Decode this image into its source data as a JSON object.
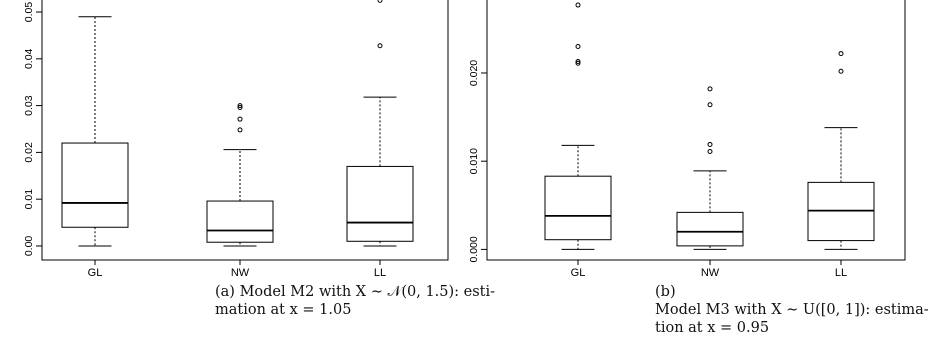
{
  "chart_data": [
    {
      "type": "box",
      "categories": [
        "GL",
        "NW",
        "LL"
      ],
      "ylim": [
        -0.003,
        0.053
      ],
      "yticks": [
        0.0,
        0.01,
        0.02,
        0.03,
        0.04,
        0.05
      ],
      "ytick_labels": [
        "0.00",
        "0.01",
        "0.02",
        "0.03",
        "0.04",
        "0.05"
      ],
      "boxes": [
        {
          "category": "GL",
          "whisker_low": 0.0,
          "q1": 0.004,
          "median": 0.0092,
          "q3": 0.022,
          "whisker_high": 0.049,
          "outliers": []
        },
        {
          "category": "NW",
          "whisker_low": 0.0,
          "q1": 0.0008,
          "median": 0.0033,
          "q3": 0.0096,
          "whisker_high": 0.0206,
          "outliers": [
            0.0248,
            0.0271,
            0.0296,
            0.03
          ]
        },
        {
          "category": "LL",
          "whisker_low": 0.0,
          "q1": 0.001,
          "median": 0.005,
          "q3": 0.017,
          "whisker_high": 0.0318,
          "outliers": [
            0.0428,
            0.0525
          ]
        }
      ],
      "caption_label": "(a)",
      "caption_line1": "Model M2 with X ∼ 𝒩(0, 1.5): esti-",
      "caption_line2": "mation at x = 1.05"
    },
    {
      "type": "box",
      "categories": [
        "GL",
        "NW",
        "LL"
      ],
      "ylim": [
        -0.0012,
        0.0285
      ],
      "yticks": [
        0.0,
        0.01,
        0.02
      ],
      "ytick_labels": [
        "0.000",
        "0.010",
        "0.020"
      ],
      "boxes": [
        {
          "category": "GL",
          "whisker_low": 0.0,
          "q1": 0.0011,
          "median": 0.0038,
          "q3": 0.0083,
          "whisker_high": 0.0118,
          "outliers": [
            0.0211,
            0.0213,
            0.023,
            0.0277
          ]
        },
        {
          "category": "NW",
          "whisker_low": 0.0,
          "q1": 0.0004,
          "median": 0.002,
          "q3": 0.0042,
          "whisker_high": 0.0089,
          "outliers": [
            0.0111,
            0.0119,
            0.0164,
            0.0182
          ]
        },
        {
          "category": "LL",
          "whisker_low": 0.0,
          "q1": 0.001,
          "median": 0.0044,
          "q3": 0.0076,
          "whisker_high": 0.0138,
          "outliers": [
            0.0202,
            0.0222
          ]
        }
      ],
      "caption_label": "(b)",
      "caption_line1": "Model M3 with X ∼ U([0, 1]): estima-",
      "caption_line2": "tion at x = 0.95"
    }
  ]
}
